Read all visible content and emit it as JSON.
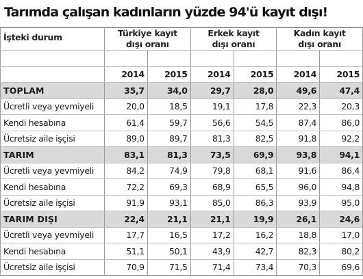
{
  "title": "Tarımda çalışan kadınların yüzde 94'ü kayıt dışı!",
  "header": {
    "label_column": "İşteki durum",
    "groups": [
      {
        "line1": "Türkiye kayıt",
        "line2": "dışı oranı"
      },
      {
        "line1": "Erkek kayıt",
        "line2": "dışı oranı"
      },
      {
        "line1": "Kadın kayıt",
        "line2": "dışı oranı"
      }
    ],
    "years": [
      "2014",
      "2015",
      "2014",
      "2015",
      "2014",
      "2015"
    ]
  },
  "rows": [
    {
      "label": "TOPLAM",
      "section": true,
      "values": [
        "35,7",
        "34,0",
        "29,7",
        "28,0",
        "49,6",
        "47,4"
      ]
    },
    {
      "label": "Ücretli veya yevmiyeli",
      "section": false,
      "values": [
        "20,0",
        "18,5",
        "19,1",
        "17,8",
        "22,3",
        "20,3"
      ]
    },
    {
      "label": "Kendi hesabına",
      "section": false,
      "values": [
        "61,4",
        "59,7",
        "56,6",
        "54,5",
        "87,4",
        "86,0"
      ]
    },
    {
      "label": "Ücretsiz aile işçisi",
      "section": false,
      "values": [
        "89,0",
        "89,7",
        "81,3",
        "82,5",
        "91,8",
        "92,2"
      ]
    },
    {
      "label": "TARIM",
      "section": true,
      "values": [
        "83,1",
        "81,3",
        "73,5",
        "69,9",
        "93,8",
        "94,1"
      ]
    },
    {
      "label": "Ücretli veya yevmiyeli",
      "section": false,
      "values": [
        "84,2",
        "74,9",
        "79,8",
        "68,1",
        "91,6",
        "86,4"
      ]
    },
    {
      "label": "Kendi hesabına",
      "section": false,
      "values": [
        "72,2",
        "69,3",
        "68,9",
        "65,5",
        "96,0",
        "94,8"
      ]
    },
    {
      "label": "Ücretsiz aile işçisi",
      "section": false,
      "values": [
        "91,9",
        "93,1",
        "85,0",
        "86,3",
        "93,9",
        "95,0"
      ]
    },
    {
      "label": "TARIM DIŞI",
      "section": true,
      "values": [
        "22,4",
        "21,1",
        "21,1",
        "19,9",
        "26,1",
        "24,6"
      ]
    },
    {
      "label": "Ücretli veya yevmiyeli",
      "section": false,
      "values": [
        "17,7",
        "16,5",
        "17,2",
        "16,2",
        "18,8",
        "17,0"
      ]
    },
    {
      "label": "Kendi hesabına",
      "section": false,
      "values": [
        "51,1",
        "50,1",
        "43,9",
        "42,7",
        "82,3",
        "80,2"
      ]
    },
    {
      "label": "Ücretsiz aile işçisi",
      "section": false,
      "values": [
        "70,9",
        "71,5",
        "71,4",
        "73,4",
        "70,3",
        "69,6"
      ]
    }
  ],
  "colors": {
    "section_bg": "#d9d9d9",
    "border": "#9a9a9a"
  }
}
